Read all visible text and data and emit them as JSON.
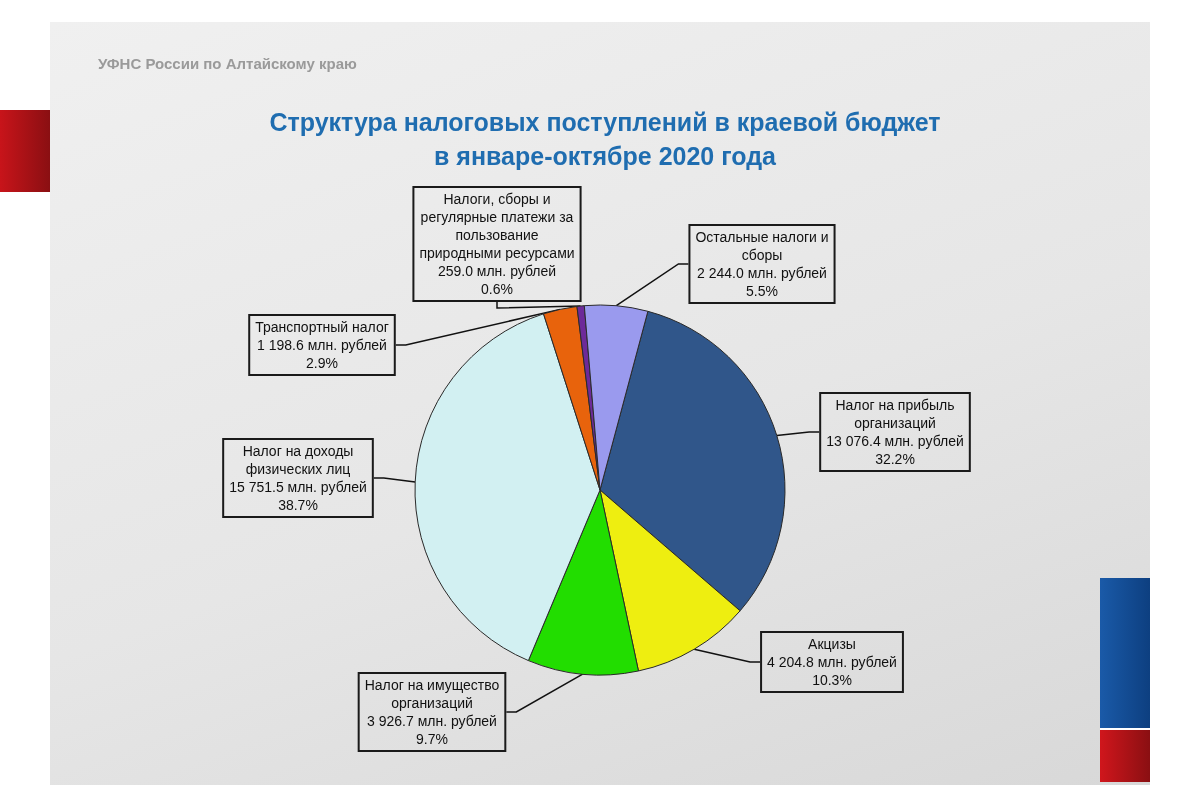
{
  "chart_data": {
    "type": "pie",
    "title": "Структура налоговых поступлений в краевой бюджет\nв январе-октябре 2020 года",
    "annotations": [
      "УФНС России по Алтайскому краю"
    ],
    "categories": [
      "Налог на прибыль организаций",
      "Акцизы",
      "Налог на имущество организаций",
      "Налог на доходы физических лиц",
      "Транспортный налог",
      "Налоги, сборы и регулярные платежи за пользование природными ресурсами",
      "Остальные налоги и сборы"
    ],
    "values": [
      13076.4,
      4204.8,
      3926.7,
      15751.5,
      1198.6,
      259.0,
      2244.0
    ],
    "value_labels": [
      "13 076.4 млн. рублей\n32.2%",
      "4 204.8 млн. рублей\n10.3%",
      "3 926.7 млн. рублей\n9.7%",
      "15 751.5 млн. рублей\n38.7%",
      "1 198.6 млн. рублей\n2.9%",
      "259.0 млн. рублей\n0.6%",
      "2 244.0 млн. рублей\n5.5%"
    ],
    "colors": [
      "#30568a",
      "#eeee10",
      "#22dd00",
      "#d2f0f2",
      "#e8630c",
      "#6d2a99",
      "#9a9aee"
    ]
  }
}
